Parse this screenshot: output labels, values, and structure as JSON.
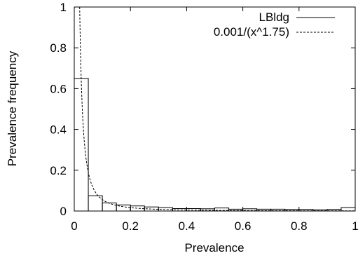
{
  "chart_data": {
    "type": "bar",
    "xlabel": "Prevalence",
    "ylabel": "Prevalence frequency",
    "xlim": [
      0,
      1
    ],
    "ylim": [
      0,
      1
    ],
    "xticks": [
      0,
      0.2,
      0.4,
      0.6,
      0.8,
      1
    ],
    "xtick_labels": [
      "0",
      "0.2",
      "0.4",
      "0.6",
      "0.8",
      "1"
    ],
    "yticks": [
      0,
      0.2,
      0.4,
      0.6,
      0.8,
      1
    ],
    "ytick_labels": [
      "0",
      "0.2",
      "0.4",
      "0.6",
      "0.8",
      "1"
    ],
    "grid": false,
    "legend_position": "top-right",
    "histogram": {
      "name": "LBldg",
      "bin_width": 0.05,
      "bins_start": [
        0,
        0.05,
        0.1,
        0.15,
        0.2,
        0.25,
        0.3,
        0.35,
        0.4,
        0.45,
        0.5,
        0.55,
        0.6,
        0.65,
        0.7,
        0.75,
        0.8,
        0.85,
        0.9,
        0.95
      ],
      "values": [
        0.65,
        0.075,
        0.04,
        0.03,
        0.025,
        0.02,
        0.017,
        0.012,
        0.012,
        0.011,
        0.015,
        0.009,
        0.011,
        0.009,
        0.009,
        0.008,
        0.008,
        0.006,
        0.008,
        0.017
      ],
      "style": "solid",
      "color": "#000000"
    },
    "curve": {
      "name": "0.001/(x^1.75)",
      "coefficient": 0.001,
      "exponent": 1.75,
      "style": "dashed",
      "color": "#000000"
    }
  }
}
